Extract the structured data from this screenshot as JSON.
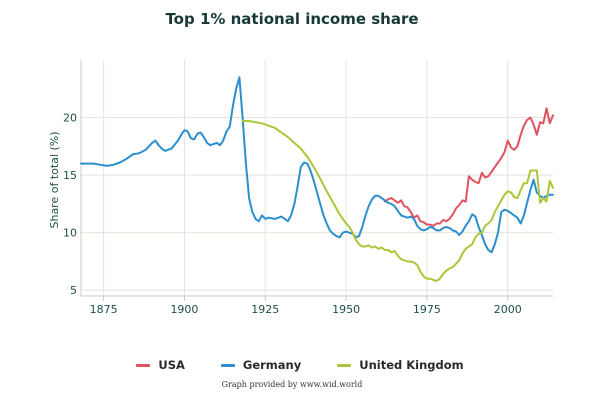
{
  "chart_data": {
    "type": "line",
    "title": "Top 1% national income share",
    "xlabel": "",
    "ylabel": "Share of total (%)",
    "xlim": [
      1868,
      2014
    ],
    "ylim": [
      4.5,
      25
    ],
    "x_ticks": [
      1875,
      1900,
      1925,
      1950,
      1975,
      2000
    ],
    "y_ticks": [
      5,
      10,
      15,
      20
    ],
    "legend_position": "bottom-center",
    "grid": true,
    "credit": "Graph provided by www.wid.world",
    "series": [
      {
        "name": "USA",
        "color": "#e0525e",
        "points": [
          [
            1962,
            12.7
          ],
          [
            1963,
            12.9
          ],
          [
            1964,
            13.0
          ],
          [
            1965,
            12.8
          ],
          [
            1966,
            12.6
          ],
          [
            1967,
            12.8
          ],
          [
            1968,
            12.3
          ],
          [
            1969,
            12.2
          ],
          [
            1970,
            11.8
          ],
          [
            1971,
            11.3
          ],
          [
            1972,
            11.5
          ],
          [
            1973,
            11.0
          ],
          [
            1974,
            10.9
          ],
          [
            1975,
            10.7
          ],
          [
            1976,
            10.7
          ],
          [
            1977,
            10.6
          ],
          [
            1978,
            10.8
          ],
          [
            1979,
            10.8
          ],
          [
            1980,
            11.1
          ],
          [
            1981,
            11.0
          ],
          [
            1982,
            11.2
          ],
          [
            1983,
            11.6
          ],
          [
            1984,
            12.1
          ],
          [
            1985,
            12.4
          ],
          [
            1986,
            12.8
          ],
          [
            1987,
            12.7
          ],
          [
            1988,
            14.9
          ],
          [
            1989,
            14.6
          ],
          [
            1990,
            14.4
          ],
          [
            1991,
            14.3
          ],
          [
            1992,
            15.2
          ],
          [
            1993,
            14.8
          ],
          [
            1994,
            14.9
          ],
          [
            1995,
            15.3
          ],
          [
            1996,
            15.7
          ],
          [
            1997,
            16.1
          ],
          [
            1998,
            16.5
          ],
          [
            1999,
            17.0
          ],
          [
            2000,
            18.0
          ],
          [
            2001,
            17.4
          ],
          [
            2002,
            17.2
          ],
          [
            2003,
            17.5
          ],
          [
            2004,
            18.5
          ],
          [
            2005,
            19.3
          ],
          [
            2006,
            19.8
          ],
          [
            2007,
            20.0
          ],
          [
            2008,
            19.4
          ],
          [
            2009,
            18.5
          ],
          [
            2010,
            19.6
          ],
          [
            2011,
            19.5
          ],
          [
            2012,
            20.8
          ],
          [
            2013,
            19.5
          ],
          [
            2014,
            20.2
          ]
        ]
      },
      {
        "name": "Germany",
        "color": "#2b8fcf",
        "points": [
          [
            1868,
            16.0
          ],
          [
            1870,
            16.0
          ],
          [
            1872,
            16.0
          ],
          [
            1874,
            15.9
          ],
          [
            1876,
            15.8
          ],
          [
            1878,
            15.9
          ],
          [
            1880,
            16.1
          ],
          [
            1882,
            16.4
          ],
          [
            1884,
            16.8
          ],
          [
            1886,
            16.9
          ],
          [
            1888,
            17.2
          ],
          [
            1890,
            17.8
          ],
          [
            1891,
            18.0
          ],
          [
            1892,
            17.6
          ],
          [
            1893,
            17.3
          ],
          [
            1894,
            17.1
          ],
          [
            1896,
            17.3
          ],
          [
            1898,
            18.0
          ],
          [
            1899,
            18.5
          ],
          [
            1900,
            18.9
          ],
          [
            1901,
            18.8
          ],
          [
            1902,
            18.2
          ],
          [
            1903,
            18.1
          ],
          [
            1904,
            18.6
          ],
          [
            1905,
            18.7
          ],
          [
            1906,
            18.3
          ],
          [
            1907,
            17.8
          ],
          [
            1908,
            17.6
          ],
          [
            1909,
            17.7
          ],
          [
            1910,
            17.8
          ],
          [
            1911,
            17.6
          ],
          [
            1912,
            18.0
          ],
          [
            1913,
            18.8
          ],
          [
            1914,
            19.2
          ],
          [
            1915,
            21.0
          ],
          [
            1916,
            22.5
          ],
          [
            1917,
            23.5
          ],
          [
            1918,
            20.0
          ],
          [
            1919,
            16.0
          ],
          [
            1920,
            13.0
          ],
          [
            1921,
            11.8
          ],
          [
            1922,
            11.2
          ],
          [
            1923,
            11.0
          ],
          [
            1924,
            11.5
          ],
          [
            1925,
            11.2
          ],
          [
            1926,
            11.3
          ],
          [
            1928,
            11.2
          ],
          [
            1930,
            11.4
          ],
          [
            1932,
            11.0
          ],
          [
            1933,
            11.5
          ],
          [
            1934,
            12.5
          ],
          [
            1935,
            14.0
          ],
          [
            1936,
            15.7
          ],
          [
            1937,
            16.1
          ],
          [
            1938,
            16.0
          ],
          [
            1939,
            15.4
          ],
          [
            1940,
            14.5
          ],
          [
            1941,
            13.5
          ],
          [
            1942,
            12.5
          ],
          [
            1943,
            11.5
          ],
          [
            1944,
            10.8
          ],
          [
            1945,
            10.2
          ],
          [
            1946,
            9.9
          ],
          [
            1947,
            9.7
          ],
          [
            1948,
            9.6
          ],
          [
            1949,
            10.0
          ],
          [
            1950,
            10.1
          ],
          [
            1951,
            10.0
          ],
          [
            1952,
            9.9
          ],
          [
            1953,
            9.6
          ],
          [
            1954,
            9.7
          ],
          [
            1955,
            10.5
          ],
          [
            1956,
            11.5
          ],
          [
            1957,
            12.3
          ],
          [
            1958,
            12.9
          ],
          [
            1959,
            13.2
          ],
          [
            1960,
            13.2
          ],
          [
            1961,
            13.0
          ],
          [
            1962,
            12.8
          ],
          [
            1963,
            12.6
          ],
          [
            1964,
            12.5
          ],
          [
            1965,
            12.3
          ],
          [
            1966,
            11.9
          ],
          [
            1967,
            11.5
          ],
          [
            1968,
            11.4
          ],
          [
            1969,
            11.3
          ],
          [
            1970,
            11.4
          ],
          [
            1971,
            11.2
          ],
          [
            1972,
            10.6
          ],
          [
            1973,
            10.3
          ],
          [
            1974,
            10.2
          ],
          [
            1975,
            10.3
          ],
          [
            1976,
            10.5
          ],
          [
            1977,
            10.4
          ],
          [
            1978,
            10.2
          ],
          [
            1979,
            10.2
          ],
          [
            1980,
            10.4
          ],
          [
            1981,
            10.5
          ],
          [
            1982,
            10.4
          ],
          [
            1983,
            10.2
          ],
          [
            1984,
            10.1
          ],
          [
            1985,
            9.8
          ],
          [
            1986,
            10.1
          ],
          [
            1987,
            10.6
          ],
          [
            1988,
            11.0
          ],
          [
            1989,
            11.6
          ],
          [
            1990,
            11.4
          ],
          [
            1991,
            10.5
          ],
          [
            1992,
            9.8
          ],
          [
            1993,
            9.0
          ],
          [
            1994,
            8.5
          ],
          [
            1995,
            8.3
          ],
          [
            1996,
            9.0
          ],
          [
            1997,
            10.0
          ],
          [
            1998,
            11.8
          ],
          [
            1999,
            12.0
          ],
          [
            2000,
            11.9
          ],
          [
            2001,
            11.7
          ],
          [
            2002,
            11.5
          ],
          [
            2003,
            11.3
          ],
          [
            2004,
            10.8
          ],
          [
            2005,
            11.5
          ],
          [
            2006,
            12.6
          ],
          [
            2007,
            13.7
          ],
          [
            2008,
            14.6
          ],
          [
            2009,
            13.5
          ],
          [
            2010,
            13.2
          ],
          [
            2011,
            13.0
          ],
          [
            2012,
            13.2
          ],
          [
            2013,
            13.3
          ],
          [
            2014,
            13.3
          ]
        ]
      },
      {
        "name": "United Kingdom",
        "color": "#a9c737",
        "points": [
          [
            1918,
            19.7
          ],
          [
            1920,
            19.7
          ],
          [
            1922,
            19.6
          ],
          [
            1924,
            19.5
          ],
          [
            1926,
            19.3
          ],
          [
            1928,
            19.1
          ],
          [
            1930,
            18.7
          ],
          [
            1932,
            18.3
          ],
          [
            1934,
            17.8
          ],
          [
            1936,
            17.3
          ],
          [
            1938,
            16.6
          ],
          [
            1940,
            15.7
          ],
          [
            1942,
            14.7
          ],
          [
            1944,
            13.6
          ],
          [
            1946,
            12.6
          ],
          [
            1948,
            11.6
          ],
          [
            1949,
            11.2
          ],
          [
            1950,
            10.8
          ],
          [
            1951,
            10.5
          ],
          [
            1952,
            10.0
          ],
          [
            1953,
            9.4
          ],
          [
            1954,
            9.0
          ],
          [
            1955,
            8.8
          ],
          [
            1956,
            8.8
          ],
          [
            1957,
            8.9
          ],
          [
            1958,
            8.7
          ],
          [
            1959,
            8.8
          ],
          [
            1960,
            8.6
          ],
          [
            1961,
            8.7
          ],
          [
            1962,
            8.5
          ],
          [
            1963,
            8.5
          ],
          [
            1964,
            8.3
          ],
          [
            1965,
            8.4
          ],
          [
            1966,
            8.0
          ],
          [
            1967,
            7.7
          ],
          [
            1968,
            7.6
          ],
          [
            1969,
            7.5
          ],
          [
            1970,
            7.5
          ],
          [
            1971,
            7.4
          ],
          [
            1972,
            7.2
          ],
          [
            1973,
            6.6
          ],
          [
            1974,
            6.2
          ],
          [
            1975,
            6.0
          ],
          [
            1976,
            6.0
          ],
          [
            1977,
            5.9
          ],
          [
            1978,
            5.8
          ],
          [
            1979,
            6.0
          ],
          [
            1980,
            6.4
          ],
          [
            1981,
            6.7
          ],
          [
            1982,
            6.9
          ],
          [
            1983,
            7.0
          ],
          [
            1984,
            7.3
          ],
          [
            1985,
            7.6
          ],
          [
            1986,
            8.2
          ],
          [
            1987,
            8.6
          ],
          [
            1988,
            8.8
          ],
          [
            1989,
            9.0
          ],
          [
            1990,
            9.6
          ],
          [
            1991,
            9.9
          ],
          [
            1992,
            10.0
          ],
          [
            1993,
            10.6
          ],
          [
            1994,
            10.8
          ],
          [
            1995,
            11.1
          ],
          [
            1996,
            11.8
          ],
          [
            1997,
            12.3
          ],
          [
            1998,
            12.8
          ],
          [
            1999,
            13.3
          ],
          [
            2000,
            13.6
          ],
          [
            2001,
            13.5
          ],
          [
            2002,
            13.1
          ],
          [
            2003,
            13.0
          ],
          [
            2004,
            13.7
          ],
          [
            2005,
            14.3
          ],
          [
            2006,
            14.3
          ],
          [
            2007,
            15.4
          ],
          [
            2008,
            15.4
          ],
          [
            2009,
            15.4
          ],
          [
            2010,
            12.6
          ],
          [
            2011,
            13.0
          ],
          [
            2012,
            12.7
          ],
          [
            2013,
            14.5
          ],
          [
            2014,
            13.9
          ]
        ]
      }
    ]
  }
}
